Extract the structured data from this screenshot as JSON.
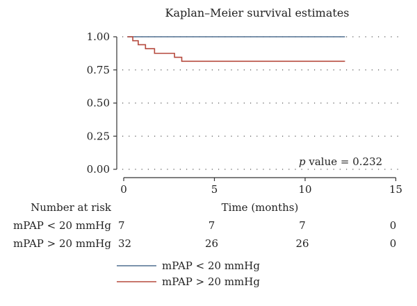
{
  "chart_data": {
    "type": "line",
    "subtype": "kaplan-meier step",
    "title": "Kaplan–Meier survival estimates",
    "xlabel": "Time (months)",
    "ylabel": "",
    "xlim": [
      0,
      15
    ],
    "ylim": [
      0,
      1
    ],
    "x_ticks": [
      0,
      5,
      10,
      15
    ],
    "y_ticks": [
      0.0,
      0.25,
      0.5,
      0.75,
      1.0
    ],
    "y_tick_labels": [
      "0.00",
      "0.25",
      "0.50",
      "0.75",
      "1.00"
    ],
    "grid": "horizontal dotted",
    "legend_position": "bottom",
    "annotation": {
      "p_label": "p",
      "p_value_text": " value = 0.232"
    },
    "series": [
      {
        "name": "mPAP < 20 mmHg",
        "color": "#4f6f8f",
        "steps": [
          [
            0.2,
            1.0
          ],
          [
            12.2,
            1.0
          ]
        ]
      },
      {
        "name": "mPAP > 20 mmHg",
        "color": "#b5483c",
        "steps": [
          [
            0.2,
            1.0
          ],
          [
            0.5,
            0.97
          ],
          [
            0.8,
            0.94
          ],
          [
            1.2,
            0.91
          ],
          [
            1.7,
            0.875
          ],
          [
            2.8,
            0.845
          ],
          [
            3.2,
            0.815
          ],
          [
            12.2,
            0.815
          ]
        ]
      }
    ],
    "risk_table": {
      "header": "Number at risk",
      "times": [
        0,
        5,
        10,
        15
      ],
      "rows": [
        {
          "label": "mPAP < 20 mmHg",
          "values": [
            "7",
            "7",
            "7",
            "0"
          ]
        },
        {
          "label": "mPAP > 20 mmHg",
          "values": [
            "32",
            "26",
            "26",
            "0"
          ]
        }
      ]
    }
  }
}
